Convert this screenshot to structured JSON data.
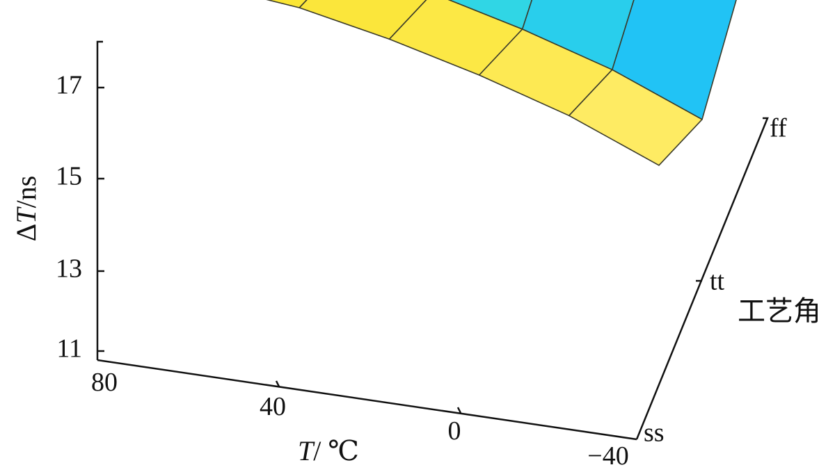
{
  "chart_data": {
    "type": "surface3d",
    "title": "",
    "axes": {
      "x": {
        "label_italic": "T",
        "label_unit": "/ ℃",
        "ticks": [
          "80",
          "40",
          "0",
          "−40"
        ],
        "values": [
          80,
          40,
          0,
          -40
        ]
      },
      "y": {
        "label": "工艺角",
        "ticks": [
          "ss",
          "tt",
          "ff"
        ],
        "values": [
          "ss",
          "tt",
          "ff"
        ]
      },
      "z": {
        "label_prefix": "Δ",
        "label_italic": "T",
        "label_unit": "/ns",
        "ticks": [
          "11",
          "13",
          "15",
          "17"
        ],
        "values": [
          11,
          13,
          15,
          17
        ],
        "zlim": [
          11,
          18
        ]
      }
    },
    "grid": false,
    "colormap": [
      "#1fb6ff",
      "#12d8ec",
      "#3ee6d4",
      "#fde94a",
      "#fff06a"
    ],
    "surface": {
      "temperatures": [
        80,
        60,
        40,
        20,
        0,
        -20,
        -40
      ],
      "corners": [
        "tt",
        "ff"
      ],
      "delta_t_ns": {
        "tt": [
          17.4,
          17.0,
          16.8,
          16.4,
          15.9,
          15.3,
          14.5
        ],
        "ff": [
          17.8,
          17.5,
          17.4,
          17.1,
          16.8,
          16.4,
          16.0
        ]
      }
    }
  }
}
